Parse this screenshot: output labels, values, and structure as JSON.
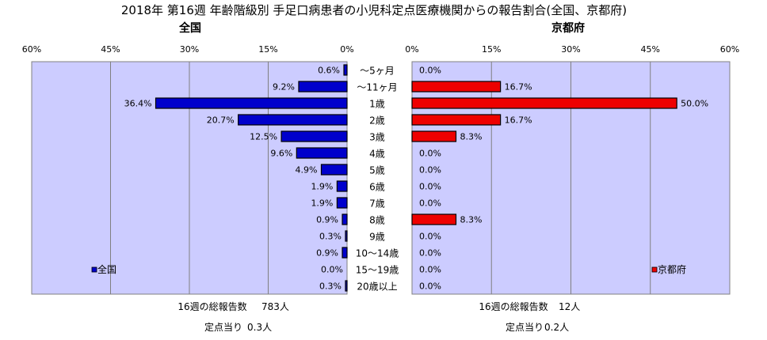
{
  "title": "2018年 第16週 年齢階級別 手足口病患者の小児科定点医療機関からの報告割合(全国、京都府)",
  "chart_data": [
    {
      "type": "bar",
      "orientation": "horizontal",
      "direction": "right-to-left",
      "subtitle": "全国",
      "categories": [
        "～5ヶ月",
        "～11ヶ月",
        "1歳",
        "2歳",
        "3歳",
        "4歳",
        "5歳",
        "6歳",
        "7歳",
        "8歳",
        "9歳",
        "10～14歳",
        "15～19歳",
        "20歳以上"
      ],
      "series": [
        {
          "name": "全国",
          "color": "#0000cc",
          "values": [
            0.6,
            9.2,
            36.4,
            20.7,
            12.5,
            9.6,
            4.9,
            1.9,
            1.9,
            0.9,
            0.3,
            0.9,
            0.0,
            0.3
          ],
          "labels": [
            "0.6%",
            "9.2%",
            "36.4%",
            "20.7%",
            "12.5%",
            "9.6%",
            "4.9%",
            "1.9%",
            "1.9%",
            "0.9%",
            "0.3%",
            "0.9%",
            "0.0%",
            "0.3%"
          ]
        }
      ],
      "xlim": [
        0,
        60
      ],
      "ticks": [
        60,
        45,
        30,
        15,
        0
      ],
      "tick_labels": [
        "60%",
        "45%",
        "30%",
        "15%",
        "0%"
      ],
      "grid": true,
      "legend": "bottom-left",
      "plot_background": "#ccccff",
      "footer": {
        "total_label": "16週の総報告数",
        "total_value": "783人",
        "per_site_label": "定点当り",
        "per_site_value": "0.3人"
      }
    },
    {
      "type": "bar",
      "orientation": "horizontal",
      "direction": "left-to-right",
      "subtitle": "京都府",
      "categories": [
        "～5ヶ月",
        "～11ヶ月",
        "1歳",
        "2歳",
        "3歳",
        "4歳",
        "5歳",
        "6歳",
        "7歳",
        "8歳",
        "9歳",
        "10～14歳",
        "15～19歳",
        "20歳以上"
      ],
      "series": [
        {
          "name": "京都府",
          "color": "#ee0000",
          "values": [
            0.0,
            16.7,
            50.0,
            16.7,
            8.3,
            0.0,
            0.0,
            0.0,
            0.0,
            8.3,
            0.0,
            0.0,
            0.0,
            0.0
          ],
          "labels": [
            "0.0%",
            "16.7%",
            "50.0%",
            "16.7%",
            "8.3%",
            "0.0%",
            "0.0%",
            "0.0%",
            "0.0%",
            "8.3%",
            "0.0%",
            "0.0%",
            "0.0%",
            "0.0%"
          ]
        }
      ],
      "xlim": [
        0,
        60
      ],
      "ticks": [
        0,
        15,
        30,
        45,
        60
      ],
      "tick_labels": [
        "0%",
        "15%",
        "30%",
        "45%",
        "60%"
      ],
      "grid": true,
      "legend": "bottom-right",
      "plot_background": "#ccccff",
      "footer": {
        "total_label": "16週の総報告数",
        "total_value": "12人",
        "per_site_label": "定点当り",
        "per_site_value": "0.2人"
      }
    }
  ]
}
